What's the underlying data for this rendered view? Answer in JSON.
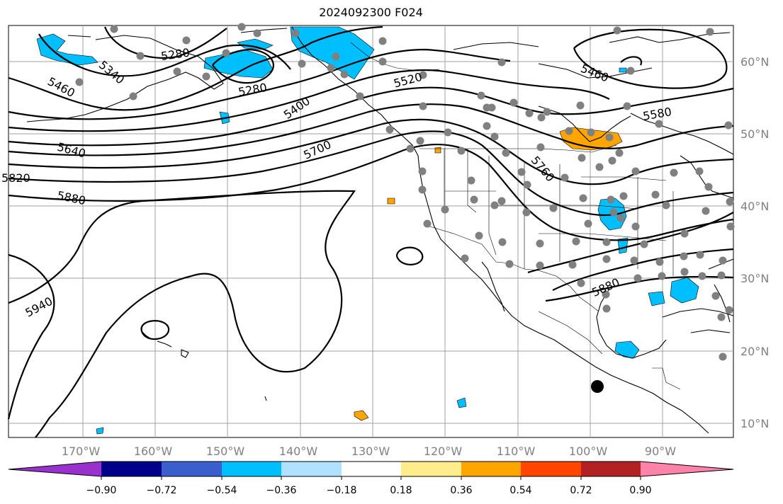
{
  "title": "2024092300 F024",
  "map": {
    "lat_labels": [
      "60°N",
      "50°N",
      "40°N",
      "30°N",
      "20°N",
      "10°N"
    ],
    "lon_labels": [
      "170°W",
      "160°W",
      "150°W",
      "140°W",
      "130°W",
      "120°W",
      "110°W",
      "100°W",
      "90°W"
    ],
    "contour_labels": [
      "5280",
      "5340",
      "5280",
      "5460",
      "5400",
      "5520",
      "5460",
      "5580",
      "5640",
      "5700",
      "5760",
      "5820",
      "5880",
      "5880",
      "5940"
    ],
    "field_colors": {
      "negative": "#00bfff",
      "positive": "#ffa500"
    }
  },
  "colorbar": {
    "tick_labels": [
      "−0.90",
      "−0.72",
      "−0.54",
      "−0.36",
      "−0.18",
      "0.18",
      "0.36",
      "0.54",
      "0.72",
      "0.90"
    ],
    "colors": [
      "#9932cc",
      "#00008b",
      "#3a5fcd",
      "#00bfff",
      "#b0e2ff",
      "#ffffff",
      "#ffec8b",
      "#ffa500",
      "#ff4500",
      "#b22222",
      "#ff82ab"
    ]
  }
}
